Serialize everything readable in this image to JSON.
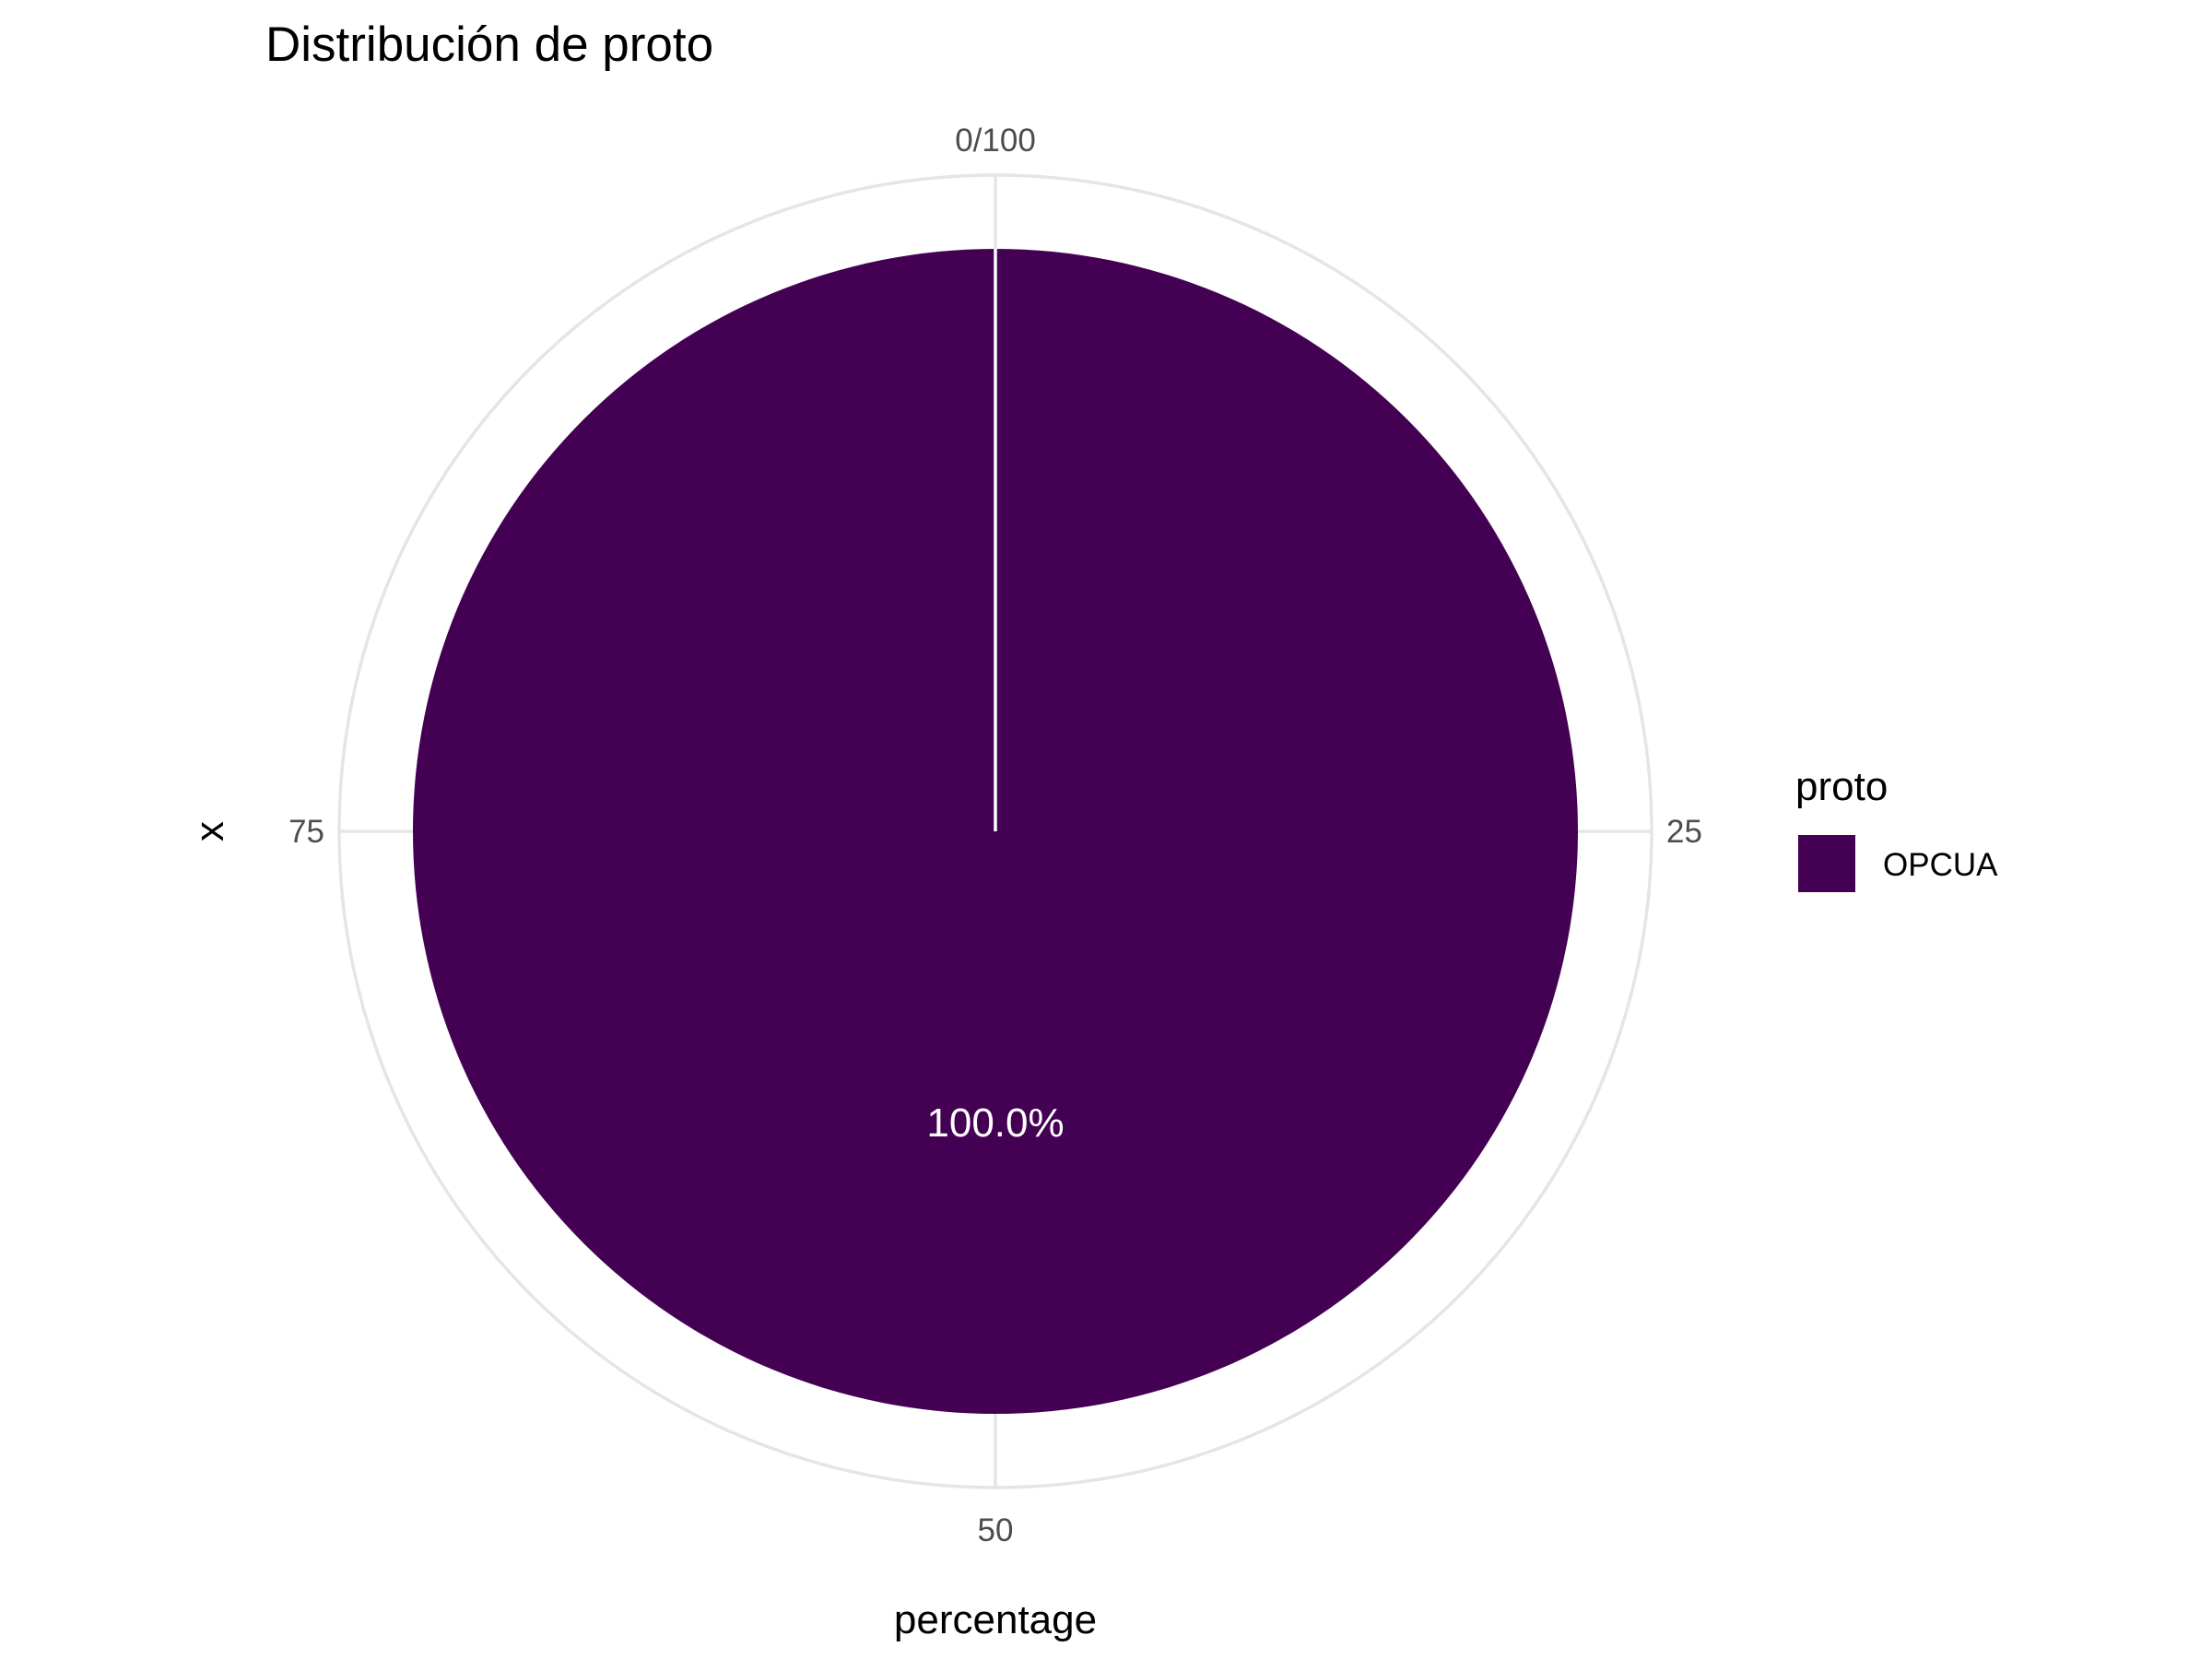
{
  "chart_data": {
    "type": "pie",
    "title": "Distribución de proto",
    "xlabel": "percentage",
    "ylabel": "x",
    "theta_ticks": [
      {
        "value": 0,
        "label": "0/100"
      },
      {
        "value": 25,
        "label": "25"
      },
      {
        "value": 50,
        "label": "50"
      },
      {
        "value": 75,
        "label": "75"
      }
    ],
    "theta_range": [
      0,
      100
    ],
    "grid": true,
    "legend": {
      "title": "proto",
      "position": "right"
    },
    "slices": [
      {
        "label": "OPCUA",
        "value": 100.0,
        "display": "100.0%",
        "color": "#440154"
      }
    ],
    "colors": {
      "grid": "#e5e5e5",
      "separator": "#ffffff",
      "background": "#ffffff"
    }
  }
}
